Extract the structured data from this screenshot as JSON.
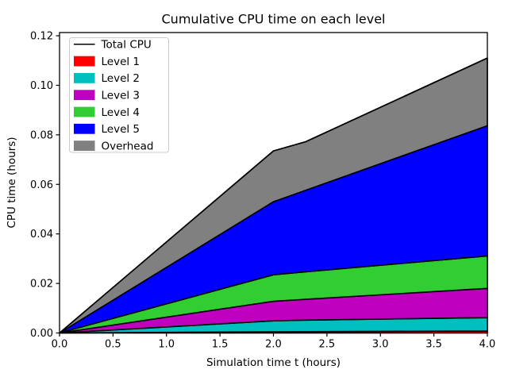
{
  "chart_data": {
    "type": "area",
    "stacked": true,
    "title": "Cumulative CPU time on each level",
    "xlabel": "Simulation time t (hours)",
    "ylabel": "CPU time (hours)",
    "grid": false,
    "xlim": [
      0,
      4
    ],
    "ylim": [
      0,
      0.1213
    ],
    "x": [
      0,
      2.0,
      2.3,
      4.0
    ],
    "series": [
      {
        "name": "Level 1",
        "color": "#ff0000",
        "values": [
          0,
          0.0005,
          0.00055,
          0.0008
        ]
      },
      {
        "name": "Level 2",
        "color": "#00bfbf",
        "values": [
          0,
          0.0044,
          0.00465,
          0.0054
        ]
      },
      {
        "name": "Level 3",
        "color": "#bf00bf",
        "values": [
          0,
          0.0079,
          0.0084,
          0.0118
        ]
      },
      {
        "name": "Level 4",
        "color": "#32cd32",
        "values": [
          0,
          0.0107,
          0.0111,
          0.0131
        ]
      },
      {
        "name": "Level 5",
        "color": "#0000ff",
        "values": [
          0,
          0.0295,
          0.0329,
          0.0526
        ]
      },
      {
        "name": "Overhead",
        "color": "#808080",
        "values": [
          0,
          0.0205,
          0.0196,
          0.0273
        ]
      }
    ],
    "total_line": {
      "name": "Total CPU",
      "color": "#000000",
      "values": [
        0,
        0.0735,
        0.0772,
        0.111
      ]
    },
    "x_tick_values": [
      0,
      0.5,
      1.0,
      1.5,
      2.0,
      2.5,
      3.0,
      3.5,
      4.0
    ],
    "x_tick_labels": [
      "0.0",
      "0.5",
      "1.0",
      "1.5",
      "2.0",
      "2.5",
      "3.0",
      "3.5",
      "4.0"
    ],
    "y_tick_values": [
      0,
      0.02,
      0.04,
      0.06,
      0.08,
      0.1,
      0.12
    ],
    "y_tick_labels": [
      "0.00",
      "0.02",
      "0.04",
      "0.06",
      "0.08",
      "0.10",
      "0.12"
    ],
    "legend": {
      "position": "upper-left",
      "entries": [
        {
          "label": "Total CPU",
          "type": "line",
          "color": "#000000"
        },
        {
          "label": "Level 1",
          "type": "patch",
          "color": "#ff0000"
        },
        {
          "label": "Level 2",
          "type": "patch",
          "color": "#00bfbf"
        },
        {
          "label": "Level 3",
          "type": "patch",
          "color": "#bf00bf"
        },
        {
          "label": "Level 4",
          "type": "patch",
          "color": "#32cd32"
        },
        {
          "label": "Level 5",
          "type": "patch",
          "color": "#0000ff"
        },
        {
          "label": "Overhead",
          "type": "patch",
          "color": "#808080"
        }
      ]
    }
  }
}
